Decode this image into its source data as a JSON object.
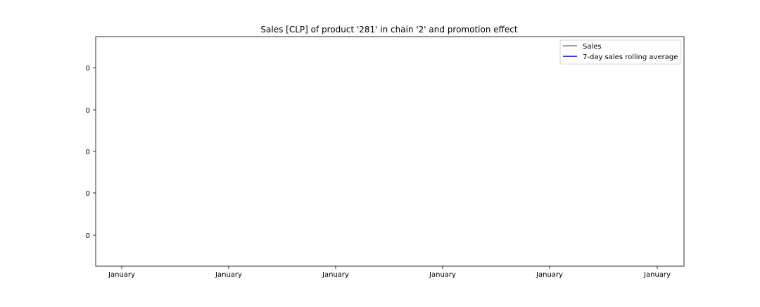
{
  "chart_data": {
    "type": "line",
    "title": "Sales [CLP] of product '281' in chain '2' and promotion effect",
    "xlabel": "",
    "ylabel": "",
    "x_tick_labels": [
      "January",
      "January",
      "January",
      "January",
      "January",
      "January"
    ],
    "y_tick_labels": [
      "0",
      "0",
      "0",
      "0",
      "0"
    ],
    "series": [
      {
        "name": "Sales",
        "color": "#808080",
        "values": []
      },
      {
        "name": "7-day sales rolling average",
        "color": "#0000cc",
        "values": []
      }
    ],
    "legend_position": "top-right",
    "grid": false
  }
}
